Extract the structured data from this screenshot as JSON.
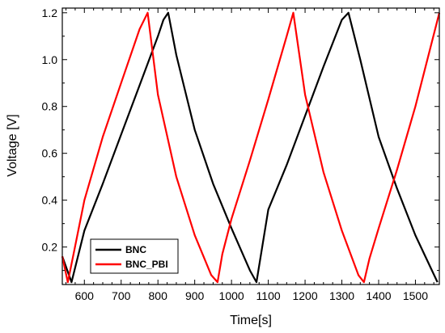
{
  "chart_data": {
    "type": "line",
    "title": "",
    "xlabel": "Time[s]",
    "ylabel": "Voltage [V]",
    "xlim": [
      540,
      1565
    ],
    "ylim": [
      0.04,
      1.22
    ],
    "xticks": [
      600,
      700,
      800,
      900,
      1000,
      1100,
      1200,
      1300,
      1400,
      1500
    ],
    "yticks": [
      0.2,
      0.4,
      0.6,
      0.8,
      1.0,
      1.2
    ],
    "xtick_labels": [
      "600",
      "700",
      "800",
      "900",
      "1000",
      "1100",
      "1200",
      "1300",
      "1400",
      "1500"
    ],
    "ytick_labels": [
      "0.2",
      "0.4",
      "0.6",
      "0.8",
      "1.0",
      "1.2"
    ],
    "grid": false,
    "legend_position": "bottom-left",
    "series": [
      {
        "name": "BNC",
        "color": "#000000",
        "x": [
          540,
          565,
          600,
          650,
          700,
          750,
          800,
          815,
          828,
          850,
          900,
          950,
          1000,
          1050,
          1068,
          1100,
          1150,
          1200,
          1250,
          1300,
          1318,
          1350,
          1400,
          1450,
          1500,
          1560
        ],
        "y": [
          0.16,
          0.05,
          0.27,
          0.47,
          0.68,
          0.89,
          1.1,
          1.17,
          1.2,
          1.02,
          0.7,
          0.47,
          0.28,
          0.1,
          0.05,
          0.36,
          0.55,
          0.76,
          0.97,
          1.17,
          1.2,
          1.0,
          0.67,
          0.45,
          0.25,
          0.05
        ]
      },
      {
        "name": "BNC_PBI",
        "color": "#ff0000",
        "x": [
          540,
          555,
          572,
          600,
          650,
          700,
          750,
          772,
          800,
          850,
          900,
          945,
          962,
          975,
          1000,
          1050,
          1100,
          1150,
          1168,
          1200,
          1250,
          1300,
          1345,
          1360,
          1375,
          1400,
          1450,
          1500,
          1565
        ],
        "y": [
          0.16,
          0.05,
          0.18,
          0.4,
          0.67,
          0.9,
          1.13,
          1.2,
          0.85,
          0.5,
          0.25,
          0.08,
          0.05,
          0.17,
          0.32,
          0.57,
          0.83,
          1.1,
          1.2,
          0.85,
          0.52,
          0.27,
          0.08,
          0.05,
          0.15,
          0.28,
          0.53,
          0.8,
          1.2
        ]
      }
    ]
  }
}
